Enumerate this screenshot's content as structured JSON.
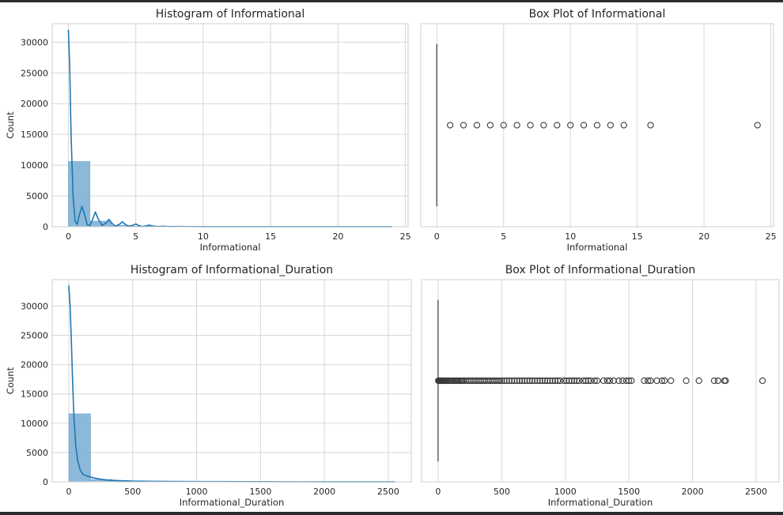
{
  "chart_data": [
    {
      "type": "histogram",
      "title": "Histogram of Informational",
      "xlabel": "Informational",
      "ylabel": "Count",
      "xlim": [
        -1.2,
        25.2
      ],
      "ylim": [
        0,
        33000
      ],
      "xticks": [
        0,
        5,
        10,
        15,
        20,
        25
      ],
      "yticks": [
        0,
        5000,
        10000,
        15000,
        20000,
        25000,
        30000
      ],
      "grid": true,
      "bins": [
        {
          "x0": 0,
          "x1": 1.6,
          "count": 10600
        },
        {
          "x0": 1.6,
          "x1": 3.2,
          "count": 900
        },
        {
          "x0": 3.2,
          "x1": 4.8,
          "count": 200
        },
        {
          "x0": 4.8,
          "x1": 6.4,
          "count": 80
        },
        {
          "x0": 6.4,
          "x1": 8.0,
          "count": 30
        },
        {
          "x0": 8.0,
          "x1": 9.6,
          "count": 15
        }
      ],
      "kde": {
        "x": [
          0,
          0.1,
          0.2,
          0.35,
          0.5,
          0.65,
          0.8,
          1.0,
          1.2,
          1.4,
          1.6,
          1.8,
          2.0,
          2.2,
          2.5,
          2.8,
          3.0,
          3.2,
          3.5,
          3.8,
          4.0,
          4.2,
          4.5,
          4.8,
          5.0,
          5.2,
          5.5,
          5.8,
          6.0,
          6.3,
          6.6,
          7.0,
          7.5,
          8.0,
          9.0,
          10.0,
          12.0,
          14.0,
          16.0,
          18.0,
          20.0,
          22.0,
          24.0
        ],
        "y": [
          32000,
          26000,
          15000,
          5000,
          900,
          400,
          1800,
          3300,
          2000,
          300,
          200,
          1200,
          2400,
          1300,
          200,
          600,
          1200,
          600,
          100,
          400,
          800,
          400,
          50,
          250,
          450,
          200,
          30,
          150,
          250,
          100,
          20,
          80,
          30,
          40,
          15,
          10,
          5,
          3,
          3,
          2,
          2,
          2,
          2
        ]
      }
    },
    {
      "type": "box",
      "title": "Box Plot of Informational",
      "xlabel": "Informational",
      "xlim": [
        -1.2,
        25.2
      ],
      "xticks": [
        0,
        5,
        10,
        15,
        20,
        25
      ],
      "grid": true,
      "box": {
        "min": 0,
        "q1": 0,
        "median": 0,
        "q3": 0,
        "max": 0
      },
      "outliers": [
        1,
        2,
        3,
        4,
        5,
        6,
        7,
        8,
        9,
        10,
        11,
        12,
        13,
        14,
        16,
        24
      ]
    },
    {
      "type": "histogram",
      "title": "Histogram of Informational_Duration",
      "xlabel": "Informational_Duration",
      "ylabel": "Count",
      "xlim": [
        -130,
        2680
      ],
      "ylim": [
        0,
        34500
      ],
      "xticks": [
        0,
        500,
        1000,
        1500,
        2000,
        2500
      ],
      "yticks": [
        0,
        5000,
        10000,
        15000,
        20000,
        25000,
        30000
      ],
      "grid": true,
      "bins": [
        {
          "x0": 0,
          "x1": 170,
          "count": 11600
        },
        {
          "x0": 170,
          "x1": 340,
          "count": 400
        },
        {
          "x0": 340,
          "x1": 510,
          "count": 150
        }
      ],
      "kde": {
        "x": [
          0,
          10,
          20,
          30,
          40,
          55,
          70,
          90,
          110,
          140,
          170,
          200,
          250,
          300,
          400,
          500,
          700,
          1000,
          1500,
          2000,
          2550
        ],
        "y": [
          33500,
          30000,
          24000,
          17000,
          11000,
          6000,
          3500,
          2000,
          1300,
          1000,
          800,
          650,
          450,
          300,
          200,
          120,
          70,
          40,
          20,
          15,
          10
        ]
      }
    },
    {
      "type": "box",
      "title": "Box Plot of Informational_Duration",
      "xlabel": "Informational_Duration",
      "xlim": [
        -130,
        2680
      ],
      "xticks": [
        0,
        500,
        1000,
        1500,
        2000,
        2500
      ],
      "grid": true,
      "box": {
        "min": 0,
        "q1": 0,
        "median": 0,
        "q3": 0,
        "max": 0
      },
      "outliers": [
        2,
        5,
        8,
        12,
        15,
        20,
        25,
        30,
        35,
        40,
        45,
        50,
        60,
        70,
        80,
        90,
        100,
        110,
        120,
        130,
        140,
        150,
        160,
        170,
        180,
        190,
        200,
        215,
        230,
        245,
        260,
        275,
        290,
        305,
        320,
        335,
        350,
        365,
        380,
        395,
        410,
        425,
        440,
        455,
        470,
        485,
        500,
        520,
        540,
        560,
        580,
        600,
        620,
        640,
        660,
        680,
        700,
        720,
        740,
        760,
        780,
        800,
        820,
        840,
        860,
        880,
        900,
        920,
        940,
        960,
        990,
        1010,
        1030,
        1050,
        1070,
        1090,
        1110,
        1140,
        1160,
        1180,
        1200,
        1230,
        1250,
        1300,
        1330,
        1350,
        1380,
        1420,
        1450,
        1480,
        1500,
        1520,
        1620,
        1650,
        1670,
        1720,
        1760,
        1780,
        1830,
        1950,
        2050,
        2170,
        2200,
        2250,
        2260,
        2550
      ]
    }
  ],
  "colors": {
    "hist_fill": "#7fb0d5",
    "hist_stroke": "#6ea4cd",
    "kde_line": "#1f77b4",
    "grid": "#d7d7d7",
    "frame": "#cfcfcf",
    "box_line": "#3b3b3b",
    "outlier": "#3b3b3b"
  }
}
